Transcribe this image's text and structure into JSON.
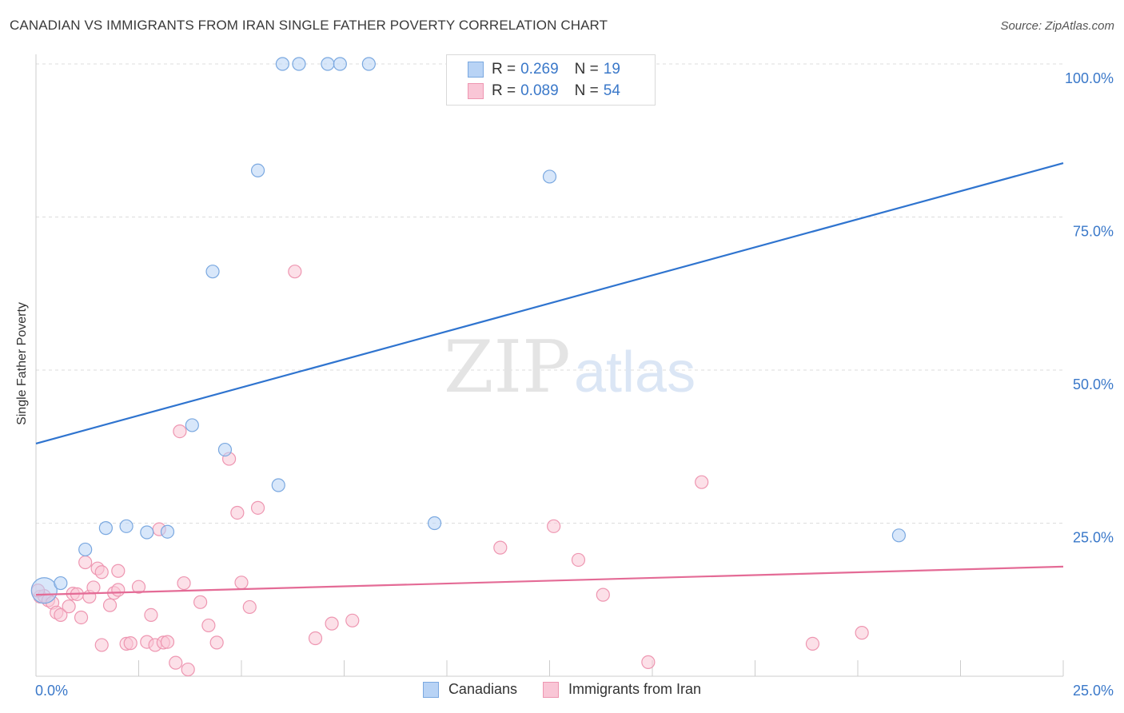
{
  "title": "CANADIAN VS IMMIGRANTS FROM IRAN SINGLE FATHER POVERTY CORRELATION CHART",
  "source": "Source: ZipAtlas.com",
  "watermark": {
    "zip": "ZIP",
    "atlas": "atlas"
  },
  "legend": {
    "r_label": "R =",
    "n_label": "N =",
    "rows": [
      {
        "r": "0.269",
        "n": "19"
      },
      {
        "r": "0.089",
        "n": "54"
      }
    ]
  },
  "colors": {
    "blue_fill": "#b8d3f5",
    "blue_stroke": "#7aa8e0",
    "blue_line": "#2f74cf",
    "pink_fill": "#f9c6d6",
    "pink_stroke": "#ee96b1",
    "pink_line": "#e46b96",
    "axis_text": "#3a78c9",
    "grid": "#dddddd"
  },
  "chart_data": {
    "type": "scatter",
    "title": "CANADIAN VS IMMIGRANTS FROM IRAN SINGLE FATHER POVERTY CORRELATION CHART",
    "xlabel": "",
    "ylabel": "Single Father Poverty",
    "xlim": [
      0,
      25
    ],
    "ylim": [
      0,
      100
    ],
    "x_tick_labels": [
      "0.0%",
      "25.0%"
    ],
    "y_ticks": [
      25,
      50,
      75,
      100
    ],
    "y_tick_labels": [
      "25.0%",
      "50.0%",
      "75.0%",
      "100.0%"
    ],
    "grid": true,
    "legend_position": "top-center",
    "series": [
      {
        "name": "Canadians",
        "r": 0.269,
        "n": 19,
        "trend": {
          "x": [
            0,
            25
          ],
          "y": [
            38.0,
            83.8
          ]
        },
        "points": [
          {
            "x": 0.2,
            "y": 14.0,
            "big": true
          },
          {
            "x": 0.6,
            "y": 15.2
          },
          {
            "x": 1.2,
            "y": 20.7
          },
          {
            "x": 1.7,
            "y": 24.2
          },
          {
            "x": 2.2,
            "y": 24.5
          },
          {
            "x": 2.7,
            "y": 23.5
          },
          {
            "x": 3.2,
            "y": 23.6
          },
          {
            "x": 3.8,
            "y": 41.0
          },
          {
            "x": 4.3,
            "y": 66.1
          },
          {
            "x": 4.6,
            "y": 37.0
          },
          {
            "x": 5.4,
            "y": 82.6
          },
          {
            "x": 5.9,
            "y": 31.2
          },
          {
            "x": 6.0,
            "y": 100.0
          },
          {
            "x": 6.4,
            "y": 100.0
          },
          {
            "x": 7.1,
            "y": 100.0
          },
          {
            "x": 7.4,
            "y": 100.0
          },
          {
            "x": 8.1,
            "y": 100.0
          },
          {
            "x": 9.7,
            "y": 25.0
          },
          {
            "x": 12.5,
            "y": 81.6
          },
          {
            "x": 21.0,
            "y": 23.0
          }
        ]
      },
      {
        "name": "Immigrants from Iran",
        "r": 0.089,
        "n": 54,
        "trend": {
          "x": [
            0,
            25
          ],
          "y": [
            13.3,
            17.9
          ]
        },
        "points": [
          {
            "x": 0.1,
            "y": 13.0
          },
          {
            "x": 0.2,
            "y": 13.1
          },
          {
            "x": 0.3,
            "y": 12.4
          },
          {
            "x": 0.4,
            "y": 12.0
          },
          {
            "x": 0.5,
            "y": 10.4
          },
          {
            "x": 0.6,
            "y": 10.0
          },
          {
            "x": 0.8,
            "y": 11.4
          },
          {
            "x": 0.9,
            "y": 13.5
          },
          {
            "x": 1.0,
            "y": 13.4
          },
          {
            "x": 1.1,
            "y": 9.6
          },
          {
            "x": 1.2,
            "y": 18.6
          },
          {
            "x": 1.3,
            "y": 13.0
          },
          {
            "x": 1.4,
            "y": 14.5
          },
          {
            "x": 1.5,
            "y": 17.6
          },
          {
            "x": 1.6,
            "y": 17.0
          },
          {
            "x": 1.6,
            "y": 5.1
          },
          {
            "x": 1.8,
            "y": 11.6
          },
          {
            "x": 1.9,
            "y": 13.6
          },
          {
            "x": 2.0,
            "y": 14.1
          },
          {
            "x": 2.0,
            "y": 17.2
          },
          {
            "x": 2.2,
            "y": 5.3
          },
          {
            "x": 2.3,
            "y": 5.4
          },
          {
            "x": 2.5,
            "y": 14.6
          },
          {
            "x": 2.7,
            "y": 5.6
          },
          {
            "x": 2.8,
            "y": 10.0
          },
          {
            "x": 2.9,
            "y": 5.1
          },
          {
            "x": 3.0,
            "y": 24.0
          },
          {
            "x": 3.1,
            "y": 5.5
          },
          {
            "x": 3.2,
            "y": 5.6
          },
          {
            "x": 3.4,
            "y": 2.2
          },
          {
            "x": 3.5,
            "y": 40.0
          },
          {
            "x": 3.6,
            "y": 15.2
          },
          {
            "x": 3.7,
            "y": 1.1
          },
          {
            "x": 4.0,
            "y": 12.1
          },
          {
            "x": 4.2,
            "y": 8.3
          },
          {
            "x": 4.4,
            "y": 5.5
          },
          {
            "x": 4.7,
            "y": 35.5
          },
          {
            "x": 4.9,
            "y": 26.7
          },
          {
            "x": 5.0,
            "y": 15.3
          },
          {
            "x": 5.2,
            "y": 11.3
          },
          {
            "x": 5.4,
            "y": 27.5
          },
          {
            "x": 6.3,
            "y": 66.1
          },
          {
            "x": 6.8,
            "y": 6.2
          },
          {
            "x": 7.2,
            "y": 8.6
          },
          {
            "x": 7.7,
            "y": 9.1
          },
          {
            "x": 11.3,
            "y": 21.0
          },
          {
            "x": 12.6,
            "y": 24.5
          },
          {
            "x": 13.2,
            "y": 19.0
          },
          {
            "x": 13.8,
            "y": 13.3
          },
          {
            "x": 14.9,
            "y": 2.3
          },
          {
            "x": 16.2,
            "y": 31.7
          },
          {
            "x": 18.9,
            "y": 5.3
          },
          {
            "x": 20.1,
            "y": 7.1
          },
          {
            "x": 0.05,
            "y": 14.0
          }
        ]
      }
    ]
  }
}
